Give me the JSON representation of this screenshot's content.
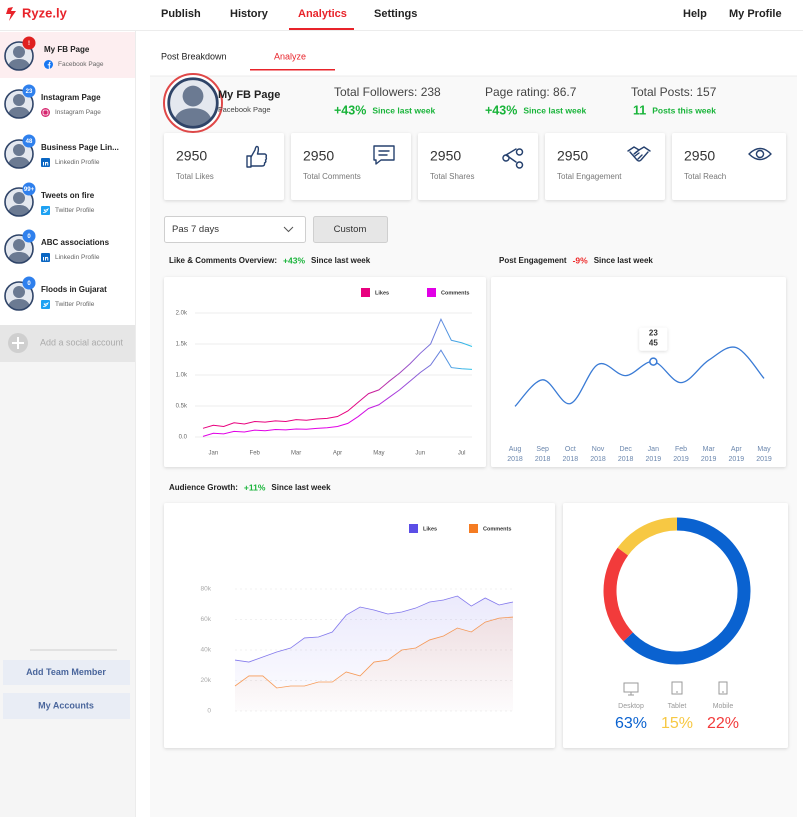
{
  "brand": "Ryze.ly",
  "nav": {
    "items": [
      "Publish",
      "History",
      "Analytics",
      "Settings"
    ],
    "right": [
      "Help",
      "My Profile"
    ]
  },
  "sidebar": {
    "accounts": [
      {
        "name": "My FB Page",
        "type": "Facebook Page",
        "badge": "!"
      },
      {
        "name": "Instagram Page",
        "type": "Instagram Page",
        "badge": "23"
      },
      {
        "name": "Business Page Lin...",
        "type": "Linkedin Profile",
        "badge": "48"
      },
      {
        "name": "Tweets on fire",
        "type": "Twitter Profile",
        "badge": "99+"
      },
      {
        "name": "ABC associations",
        "type": "Linkedin Profile",
        "badge": "0"
      },
      {
        "name": "Floods in Gujarat",
        "type": "Twitter Profile",
        "badge": "0"
      }
    ],
    "add_account": "Add a social account",
    "buttons": [
      "Add Team Member",
      "My Accounts"
    ]
  },
  "tabs": [
    "Post Breakdown",
    "Analyze"
  ],
  "profile": {
    "name": "My FB Page",
    "type": "Facebook Page"
  },
  "summary": [
    {
      "label": "Total Followers: 238",
      "change": "+43%",
      "note": "Since last week"
    },
    {
      "label": "Page rating: 86.7",
      "change": "+43%",
      "note": "Since last week"
    },
    {
      "label": "Total Posts: 157",
      "change": "11",
      "note": "Posts this week"
    }
  ],
  "stats": [
    {
      "value": 2950,
      "label": "Total Likes"
    },
    {
      "value": 2950,
      "label": "Total Comments"
    },
    {
      "value": 2950,
      "label": "Total Shares"
    },
    {
      "value": 2950,
      "label": "Total Engagement"
    },
    {
      "value": 2950,
      "label": "Total Reach"
    }
  ],
  "filter": {
    "period": "Pas 7 days",
    "custom": "Custom"
  },
  "charts": [
    {
      "type": "line",
      "title": "Like & Comments Overview:",
      "change": "+43%",
      "note": "Since last week",
      "x": [
        -0.25,
        0,
        0.25,
        0.5,
        0.75,
        1,
        1.25,
        1.5,
        1.75,
        2,
        2.25,
        2.5,
        2.75,
        3,
        3.25,
        3.5,
        3.75,
        4,
        4.25,
        4.5,
        4.75,
        5,
        5.25,
        5.5,
        5.75,
        6,
        6.25
      ],
      "xlim": [
        -0.25,
        6.25
      ],
      "xticks": [
        {
          "value": 0,
          "label": "Jan"
        },
        {
          "value": 1,
          "label": "Feb"
        },
        {
          "value": 2,
          "label": "Mar"
        },
        {
          "value": 3,
          "label": "Apr"
        },
        {
          "value": 4,
          "label": "May"
        },
        {
          "value": 5,
          "label": "Jun"
        },
        {
          "value": 6,
          "label": "Jul"
        }
      ],
      "ylim": [
        0,
        2000
      ],
      "yticks": [
        {
          "value": 0,
          "label": "0.0"
        },
        {
          "value": 500,
          "label": "0.5k"
        },
        {
          "value": 1000,
          "label": "1.0k"
        },
        {
          "value": 1500,
          "label": "1.5k"
        },
        {
          "value": 2000,
          "label": "2.0k"
        }
      ],
      "grid": true,
      "legend": "top-right",
      "series": [
        {
          "name": "Likes",
          "color": "#e8007e",
          "values": [
            140,
            190,
            170,
            230,
            210,
            250,
            240,
            260,
            250,
            280,
            270,
            290,
            300,
            330,
            420,
            560,
            700,
            760,
            900,
            1030,
            1180,
            1350,
            1500,
            1900,
            1560,
            1520,
            1460
          ]
        },
        {
          "name": "Comments",
          "color": "#e100e6",
          "values": [
            10,
            60,
            50,
            90,
            80,
            110,
            100,
            120,
            115,
            130,
            125,
            140,
            150,
            170,
            220,
            330,
            460,
            520,
            640,
            760,
            900,
            1040,
            1160,
            1400,
            1120,
            1100,
            1090
          ]
        }
      ]
    },
    {
      "type": "line",
      "title": "Post Engagement",
      "change": "-9%",
      "note": "Since last week",
      "categories": [
        "Aug 2018",
        "Sep 2018",
        "Oct 2018",
        "Nov 2018",
        "Dec 2018",
        "Jan 2019",
        "Feb 2019",
        "Mar 2019",
        "Apr 2019",
        "May 2019"
      ],
      "values": [
        24,
        43,
        26,
        54,
        46,
        56,
        41,
        57,
        66,
        44
      ],
      "color": "#3a7bd5",
      "ylim": [
        0,
        100
      ],
      "smooth": true,
      "tooltip": [
        23,
        45
      ]
    },
    {
      "type": "area",
      "title": "Audience Growth:",
      "change": "+11%",
      "note": "Since last week",
      "ylim": [
        0,
        80000
      ],
      "yticks": [
        0,
        {
          "value": 20000,
          "label": "20k"
        },
        {
          "value": 40000,
          "label": "40k"
        },
        {
          "value": 60000,
          "label": "60k"
        },
        {
          "value": 80000,
          "label": "80k"
        }
      ],
      "grid": true,
      "legend": "top-right",
      "series": [
        {
          "name": "Likes",
          "color": "#5b4ee6",
          "values": [
            33400,
            32100,
            35400,
            38700,
            41300,
            47900,
            48500,
            51800,
            62900,
            68200,
            66200,
            63600,
            64900,
            67500,
            71500,
            72800,
            75400,
            68800,
            74100,
            69500,
            71500
          ]
        },
        {
          "name": "Comments",
          "color": "#f57c22",
          "values": [
            16400,
            23000,
            23000,
            15100,
            16400,
            16400,
            19000,
            19000,
            25600,
            23000,
            32100,
            33400,
            40000,
            41300,
            46600,
            49200,
            54400,
            51800,
            58300,
            60900,
            61600
          ]
        }
      ]
    },
    {
      "type": "donut",
      "categories": [
        "Desktop",
        "Tablet",
        "Mobile"
      ],
      "values": [
        63,
        15,
        22
      ],
      "value_labels": [
        "63%",
        "15%",
        "22%"
      ],
      "colors": [
        "#0a62d0",
        "#f7c843",
        "#f23b3b"
      ]
    }
  ]
}
